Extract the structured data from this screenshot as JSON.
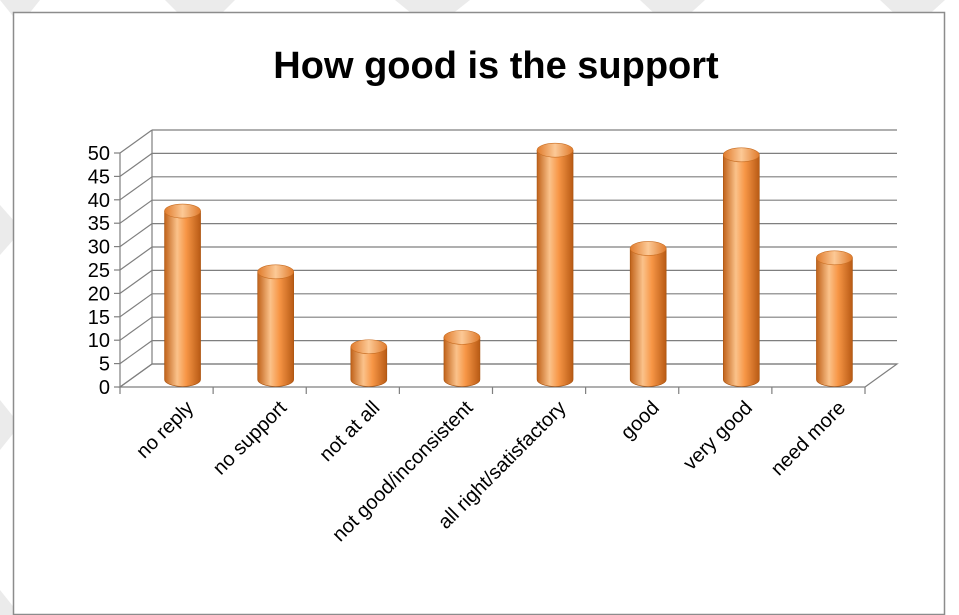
{
  "chart_data": {
    "type": "bar",
    "title": "How good is the support",
    "categories": [
      "no reply",
      "no support",
      "not at all",
      "not good/inconsistent",
      "all right/satisfactory",
      "good",
      "very good",
      "need more"
    ],
    "values": [
      36,
      23,
      7,
      9,
      49,
      28,
      48,
      26
    ],
    "ylim": [
      0,
      50
    ],
    "yticks": [
      0,
      5,
      10,
      15,
      20,
      25,
      30,
      35,
      40,
      45,
      50
    ],
    "xlabel": "",
    "ylabel": "",
    "grid": true,
    "legend": "none",
    "three_d": true
  },
  "colors": {
    "bar_light": "#fbc28a",
    "bar_mid": "#f79646",
    "bar_dark": "#c0621a",
    "grid": "#7f7f7f",
    "border": "#8c8c8c",
    "watermark": "#e6e6e6"
  }
}
